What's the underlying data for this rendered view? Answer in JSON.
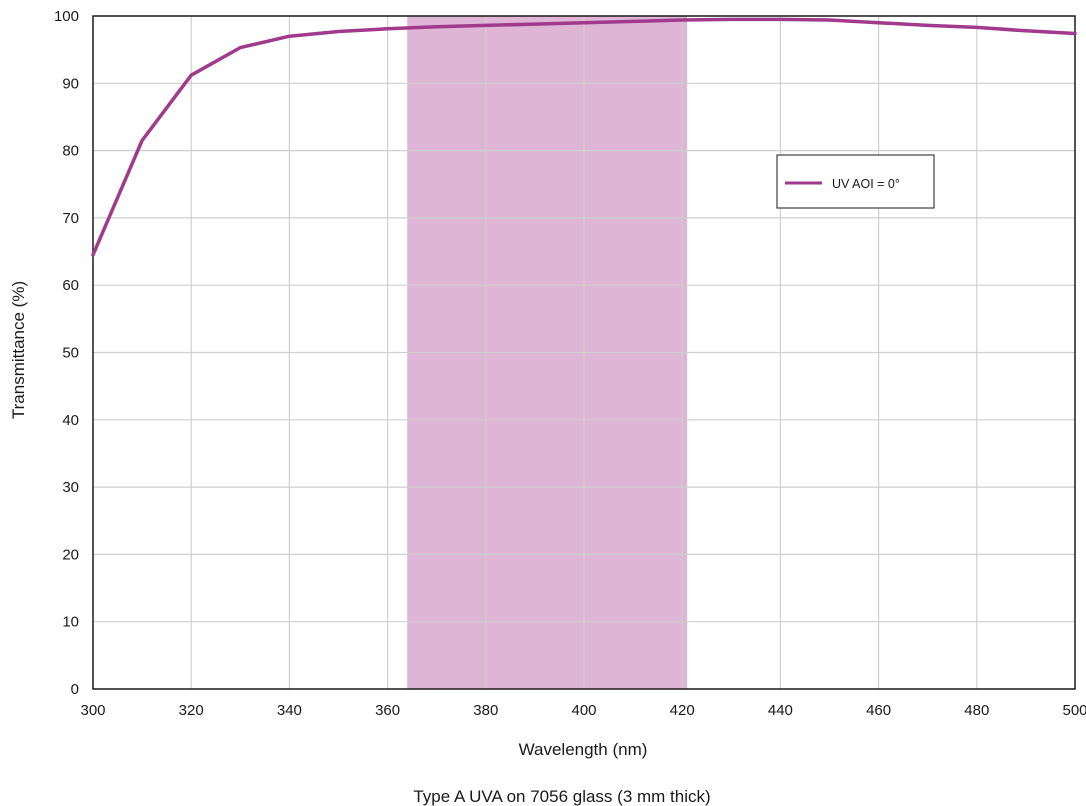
{
  "chart_data": {
    "type": "line",
    "title": "",
    "caption": "Type A UVA on 7056 glass (3 mm thick)",
    "xlabel": "Wavelength (nm)",
    "ylabel": "Transmittance (%)",
    "xlim": [
      300,
      500
    ],
    "ylim": [
      0,
      100
    ],
    "x_ticks": [
      300,
      320,
      340,
      360,
      380,
      400,
      420,
      440,
      460,
      480,
      500
    ],
    "y_ticks": [
      0,
      10,
      20,
      30,
      40,
      50,
      60,
      70,
      80,
      90,
      100
    ],
    "grid": true,
    "legend_position": "upper-right",
    "highlight_band": {
      "x_start": 364,
      "x_end": 421,
      "color": "#dfb5d5"
    },
    "series": [
      {
        "name": "UV AOI = 0°",
        "color": "#a13a8c",
        "x": [
          300,
          310,
          320,
          330,
          340,
          350,
          360,
          370,
          380,
          390,
          400,
          410,
          420,
          430,
          440,
          450,
          460,
          470,
          480,
          490,
          500
        ],
        "y": [
          64.5,
          81.5,
          91.2,
          95.3,
          97.0,
          97.7,
          98.1,
          98.4,
          98.6,
          98.8,
          99.0,
          99.2,
          99.4,
          99.5,
          99.5,
          99.4,
          99.0,
          98.6,
          98.3,
          97.8,
          97.4
        ]
      }
    ]
  }
}
